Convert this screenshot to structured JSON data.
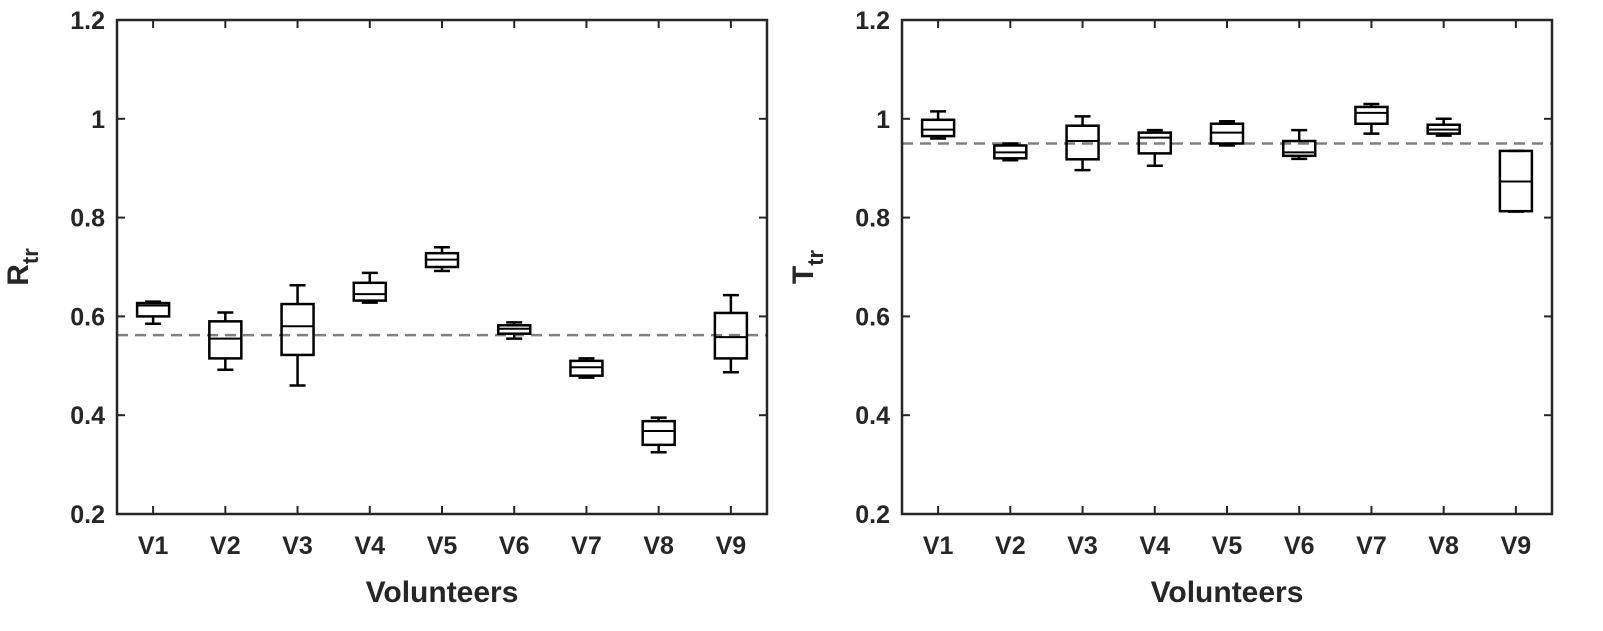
{
  "chart_data": [
    {
      "type": "box",
      "xlabel": "Volunteers",
      "ylabel": {
        "text": "R",
        "subscript": "tr"
      },
      "categories": [
        "V1",
        "V2",
        "V3",
        "V4",
        "V5",
        "V6",
        "V7",
        "V8",
        "V9"
      ],
      "boxes": [
        {
          "min": 0.585,
          "q1": 0.6,
          "median": 0.622,
          "q3": 0.627,
          "max": 0.63
        },
        {
          "min": 0.492,
          "q1": 0.515,
          "median": 0.555,
          "q3": 0.59,
          "max": 0.608
        },
        {
          "min": 0.46,
          "q1": 0.522,
          "median": 0.58,
          "q3": 0.625,
          "max": 0.663
        },
        {
          "min": 0.628,
          "q1": 0.632,
          "median": 0.645,
          "q3": 0.668,
          "max": 0.688
        },
        {
          "min": 0.692,
          "q1": 0.7,
          "median": 0.715,
          "q3": 0.728,
          "max": 0.74
        },
        {
          "min": 0.555,
          "q1": 0.565,
          "median": 0.575,
          "q3": 0.582,
          "max": 0.588
        },
        {
          "min": 0.476,
          "q1": 0.48,
          "median": 0.497,
          "q3": 0.51,
          "max": 0.515
        },
        {
          "min": 0.325,
          "q1": 0.34,
          "median": 0.368,
          "q3": 0.388,
          "max": 0.395
        },
        {
          "min": 0.487,
          "q1": 0.515,
          "median": 0.558,
          "q3": 0.607,
          "max": 0.643
        }
      ],
      "color": "#000000",
      "reference_line": 0.562,
      "reference_color": "#808080",
      "ylim": [
        0.2,
        1.2
      ],
      "yticks": [
        0.2,
        0.4,
        0.6,
        0.8,
        1,
        1.2
      ]
    },
    {
      "type": "box",
      "xlabel": "Volunteers",
      "ylabel": {
        "text": "T",
        "subscript": "tr"
      },
      "categories": [
        "V1",
        "V2",
        "V3",
        "V4",
        "V5",
        "V6",
        "V7",
        "V8",
        "V9"
      ],
      "boxes": [
        {
          "min": 0.96,
          "q1": 0.965,
          "median": 0.978,
          "q3": 0.998,
          "max": 1.015
        },
        {
          "min": 0.916,
          "q1": 0.92,
          "median": 0.932,
          "q3": 0.946,
          "max": 0.95
        },
        {
          "min": 0.896,
          "q1": 0.918,
          "median": 0.955,
          "q3": 0.986,
          "max": 1.005
        },
        {
          "min": 0.905,
          "q1": 0.93,
          "median": 0.962,
          "q3": 0.972,
          "max": 0.977
        },
        {
          "min": 0.946,
          "q1": 0.95,
          "median": 0.972,
          "q3": 0.99,
          "max": 0.995
        },
        {
          "min": 0.919,
          "q1": 0.925,
          "median": 0.932,
          "q3": 0.955,
          "max": 0.977
        },
        {
          "min": 0.97,
          "q1": 0.99,
          "median": 1.012,
          "q3": 1.024,
          "max": 1.03
        },
        {
          "min": 0.966,
          "q1": 0.97,
          "median": 0.978,
          "q3": 0.988,
          "max": 1.0
        },
        {
          "min": 0.812,
          "q1": 0.813,
          "median": 0.873,
          "q3": 0.935,
          "max": 0.935
        }
      ],
      "color": "#000000",
      "reference_line": 0.95,
      "reference_color": "#808080",
      "ylim": [
        0.2,
        1.2
      ],
      "yticks": [
        0.2,
        0.4,
        0.6,
        0.8,
        1,
        1.2
      ]
    }
  ]
}
